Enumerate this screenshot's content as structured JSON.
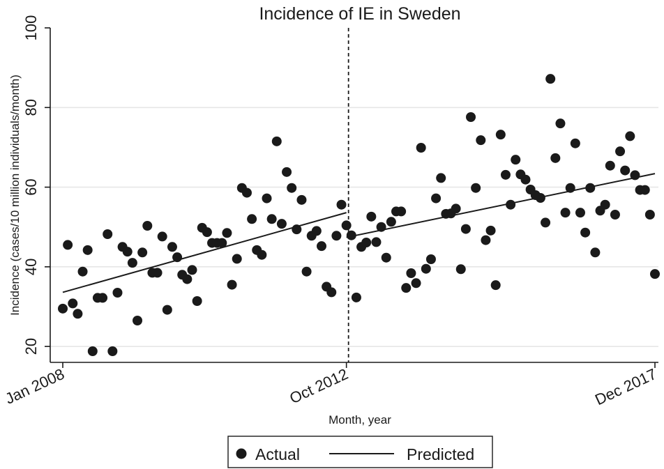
{
  "chart_data": {
    "type": "scatter",
    "title": "Incidence of IE in Sweden",
    "xlabel": "Month, year",
    "ylabel": "Incidence (cases/10 million individuals/month)",
    "ylim": [
      16,
      100
    ],
    "yticks": [
      20,
      40,
      60,
      80,
      100
    ],
    "x_ticks": [
      {
        "label": "Jan 2008",
        "month_index": 0
      },
      {
        "label": "Oct 2012",
        "month_index": 57
      },
      {
        "label": "Dec 2017",
        "month_index": 119
      }
    ],
    "intervention": {
      "month_index": 57,
      "style": "dashed"
    },
    "grid": true,
    "legend": {
      "position": "bottom-center",
      "entries": [
        {
          "label": "Actual",
          "marker": "dot"
        },
        {
          "label": "Predicted",
          "marker": "line"
        }
      ]
    },
    "series": [
      {
        "name": "Actual",
        "kind": "points",
        "values": [
          29.5,
          45.5,
          30.8,
          28.2,
          38.8,
          44.2,
          18.8,
          32.2,
          32.2,
          48.2,
          18.8,
          33.5,
          45.0,
          43.8,
          41.0,
          26.5,
          43.6,
          50.3,
          38.5,
          38.5,
          47.6,
          29.2,
          45.0,
          42.4,
          38.0,
          36.9,
          39.2,
          31.4,
          49.8,
          48.7,
          46.0,
          46.0,
          46.0,
          48.5,
          35.5,
          42.0,
          59.8,
          58.6,
          52.0,
          44.2,
          43.0,
          57.2,
          52.0,
          71.5,
          50.8,
          63.8,
          59.8,
          49.4,
          56.8,
          38.8,
          47.8,
          49.0,
          45.2,
          35.0,
          33.6,
          47.8,
          55.6,
          50.4,
          47.9,
          32.3,
          45.0,
          46.1,
          52.6,
          46.2,
          50.0,
          42.3,
          51.3,
          53.9,
          53.9,
          34.7,
          38.4,
          35.9,
          69.9,
          39.5,
          41.9,
          57.2,
          62.3,
          53.3,
          53.4,
          54.6,
          39.4,
          49.5,
          77.6,
          59.8,
          71.8,
          46.7,
          49.1,
          35.4,
          73.2,
          63.1,
          55.6,
          66.9,
          63.2,
          61.9,
          59.4,
          58.0,
          57.3,
          51.1,
          87.2,
          67.3,
          76.0,
          53.6,
          59.8,
          71.0,
          53.6,
          48.6,
          59.8,
          43.6,
          54.1,
          55.6,
          65.4,
          53.1,
          69.0,
          64.2,
          72.8,
          63.0,
          59.3,
          59.3,
          53.1,
          38.2
        ]
      },
      {
        "name": "Predicted",
        "kind": "segmented-line",
        "segments": [
          {
            "x": [
              0,
              57
            ],
            "y": [
              33.6,
              53.6
            ]
          },
          {
            "x": [
              57,
              119
            ],
            "y": [
              47.4,
              63.4
            ]
          }
        ]
      }
    ]
  }
}
